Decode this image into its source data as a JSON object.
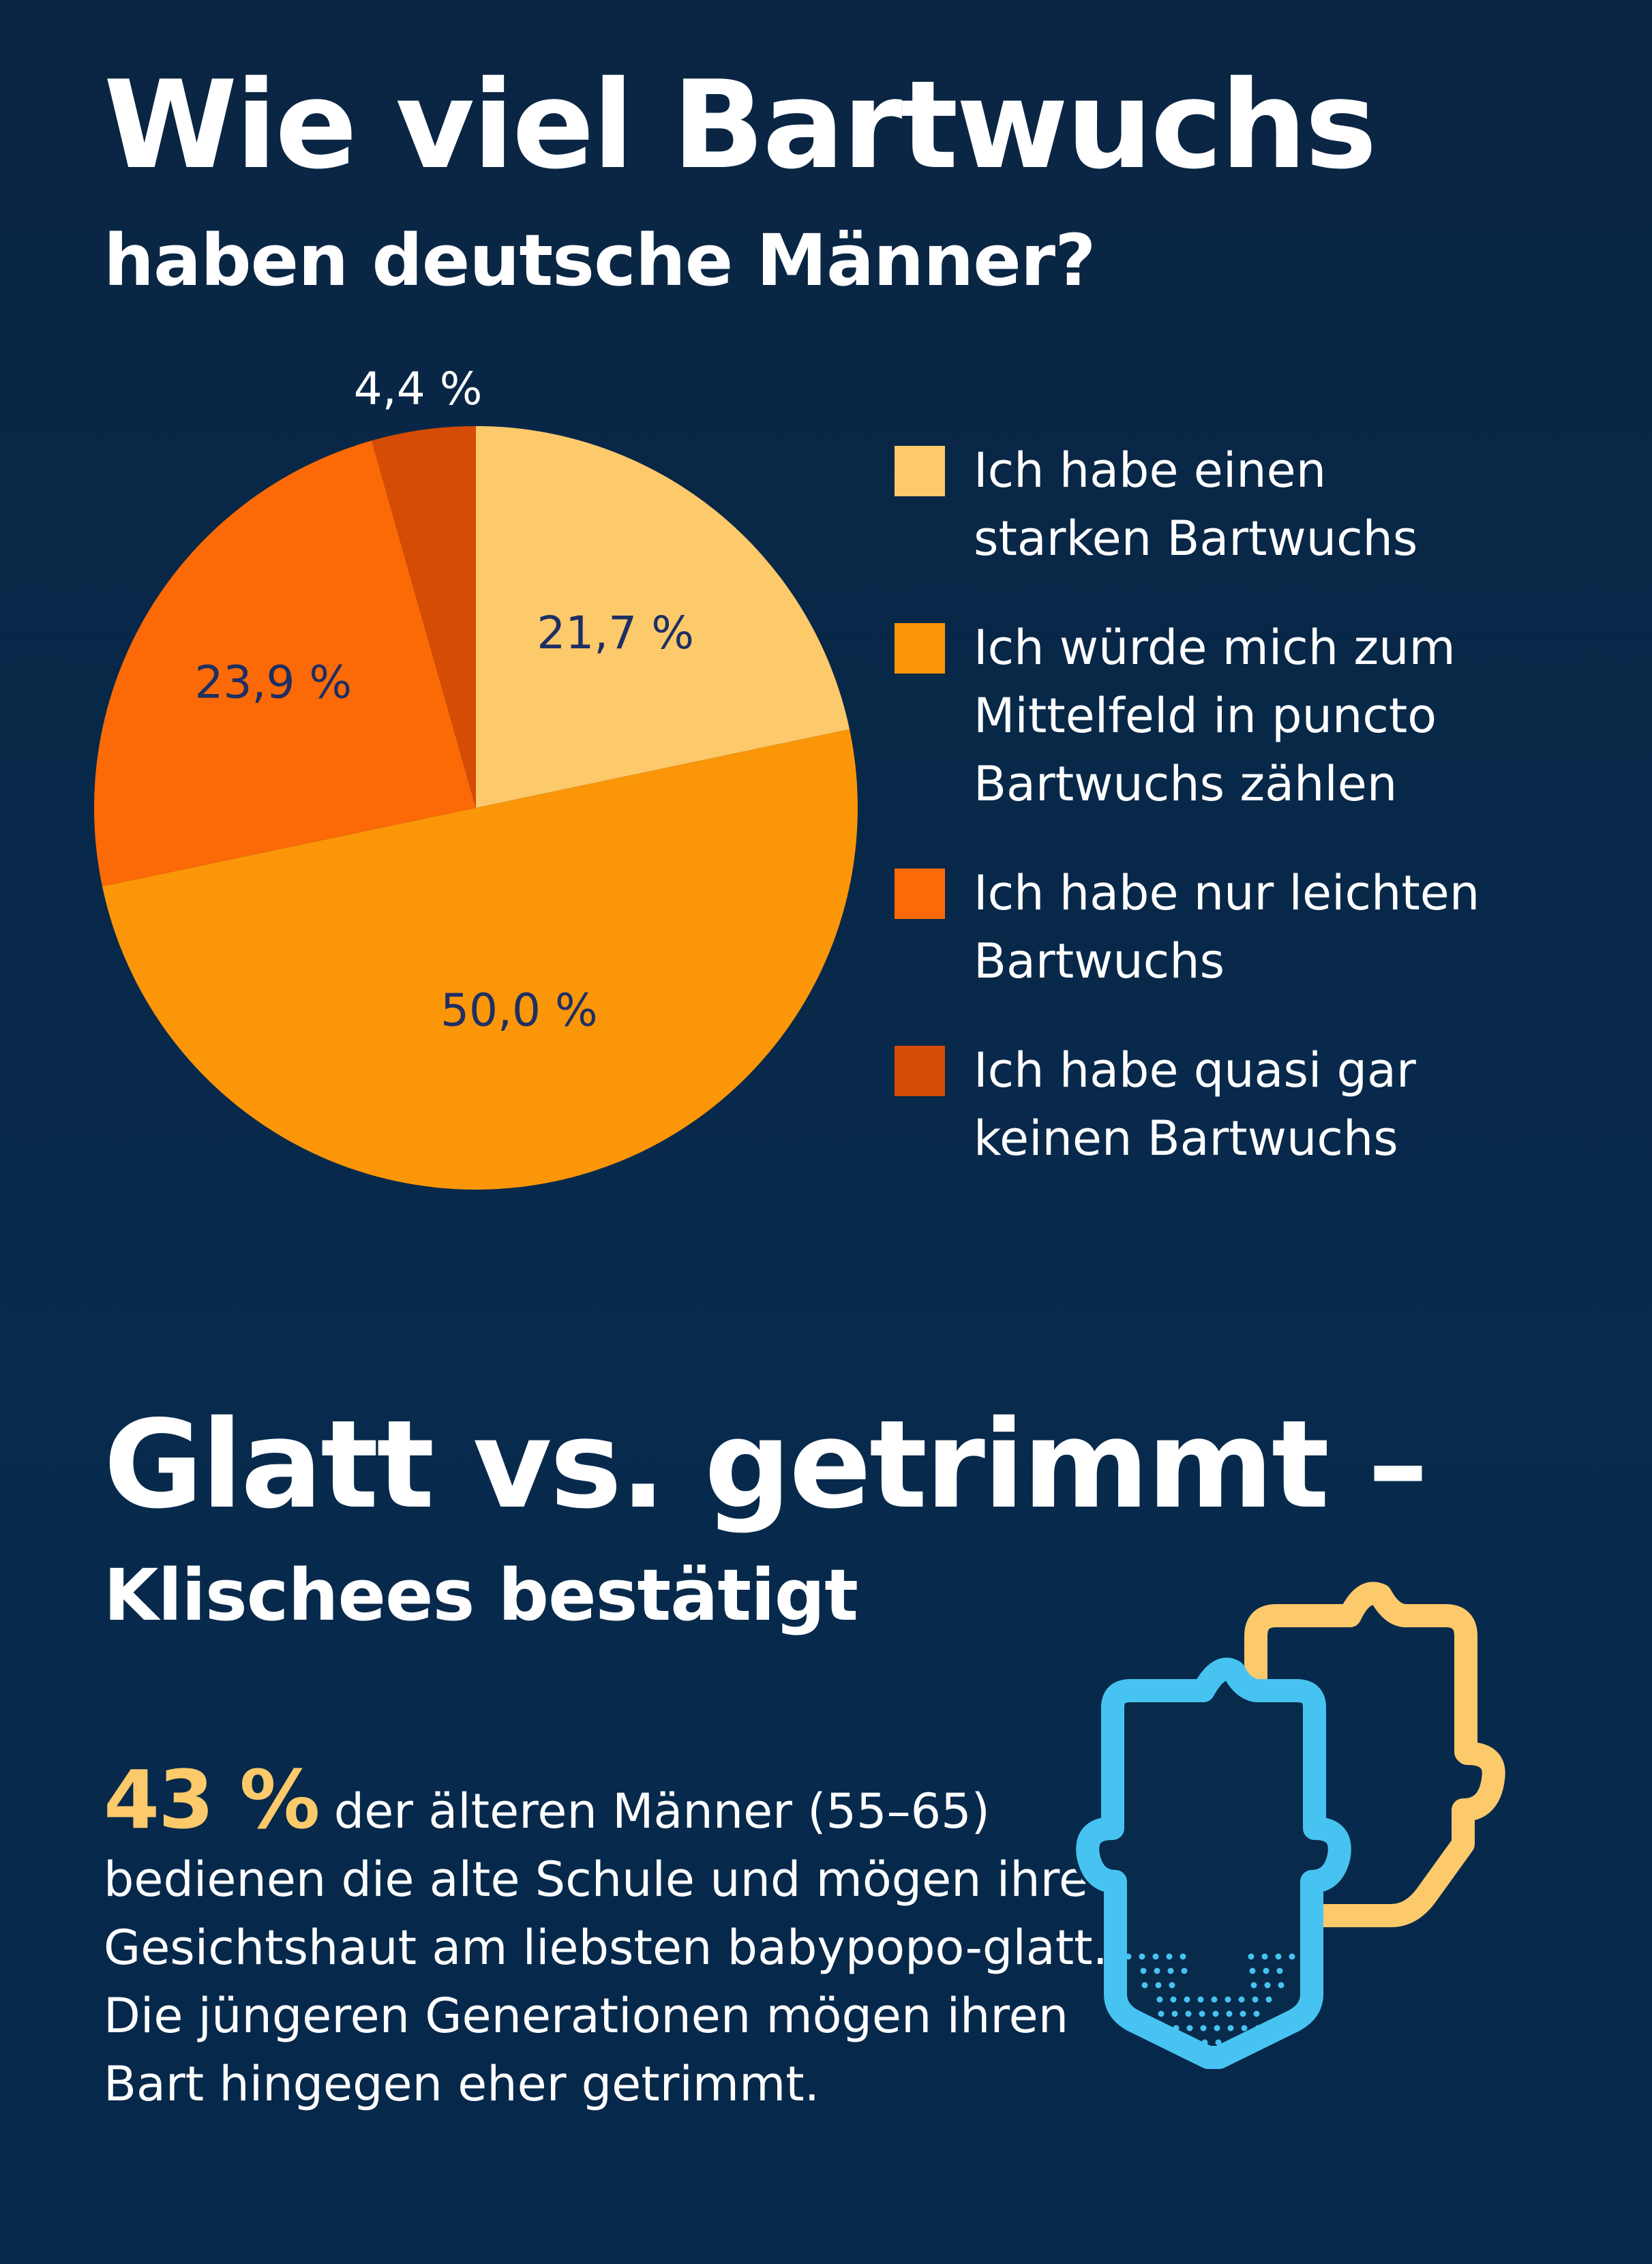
{
  "title": "Wie viel Bartwuchs",
  "subtitle": "haben deutsche Männer?",
  "chart_data": {
    "type": "pie",
    "title": "Wie viel Bartwuchs haben deutsche Männer?",
    "slices": [
      {
        "label": "Ich habe einen starken Bartwuchs",
        "value": 21.7,
        "display": "21,7 %",
        "color": "#fcc96b"
      },
      {
        "label": "Ich würde mich zum Mittelfeld in puncto Bartwuchs zählen",
        "value": 50.0,
        "display": "50,0 %",
        "color": "#fb9608"
      },
      {
        "label": "Ich habe nur leichten Bartwuchs",
        "value": 23.9,
        "display": "23,9 %",
        "color": "#fb6a06"
      },
      {
        "label": "Ich habe quasi gar keinen Bartwuchs",
        "value": 4.4,
        "display": "4,4 %",
        "color": "#d44c05"
      }
    ],
    "legend_placement": "right"
  },
  "legend": [
    {
      "text": "Ich habe einen\nstarken Bartwuchs",
      "color": "#fcc96b"
    },
    {
      "text": "Ich würde mich zum\nMittelfeld in puncto\nBartwuchs zählen",
      "color": "#fb9608"
    },
    {
      "text": "Ich habe nur leichten\nBartwuchs",
      "color": "#fb6a06"
    },
    {
      "text": "Ich habe quasi gar\nkeinen Bartwuchs",
      "color": "#d44c05"
    }
  ],
  "section2": {
    "title": "Glatt vs. getrimmt –",
    "subtitle": "Klischees bestätigt",
    "stat": "43 %",
    "text_first": " der älteren Männer (55–65)",
    "text_rest": "bedienen die alte Schule und mögen ihre Gesichtshaut am liebsten babypopo-glatt. Die jüngeren Generationen mögen ihren Bart hingegen eher getrimmt."
  },
  "icons": {
    "face_clean": "clean-shaven-face-icon",
    "face_beard": "trimmed-beard-face-icon",
    "color_yellow": "#fcc96b",
    "color_blue": "#47c3f2"
  }
}
